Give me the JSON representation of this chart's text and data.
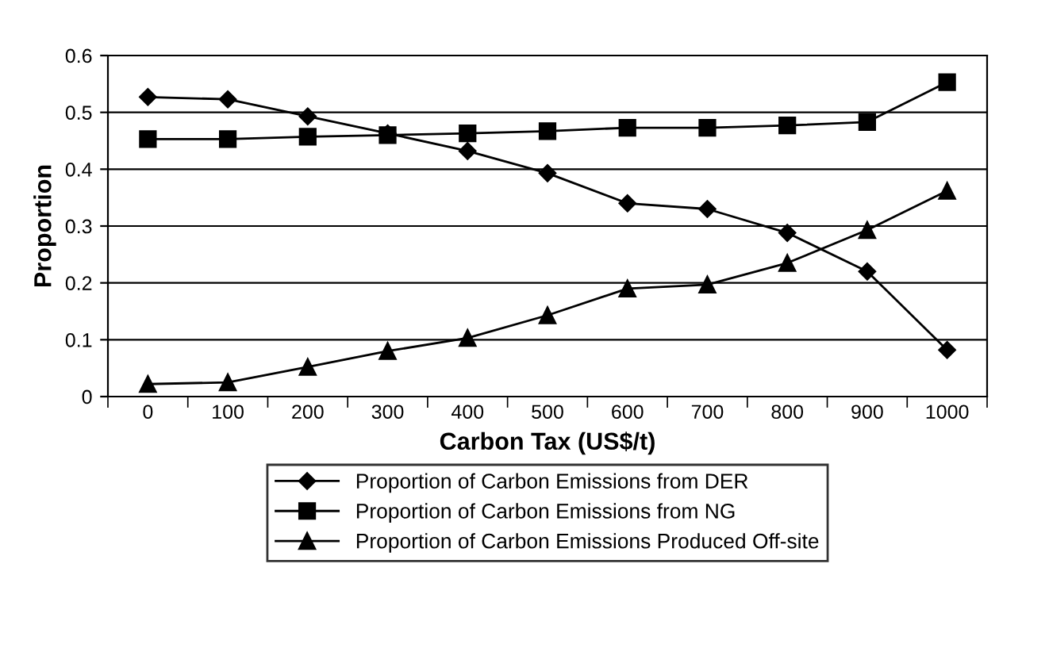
{
  "chart_data": {
    "type": "line",
    "xlabel": "Carbon Tax (US$/t)",
    "ylabel": "Proportion",
    "categories": [
      "0",
      "100",
      "200",
      "300",
      "400",
      "500",
      "600",
      "700",
      "800",
      "900",
      "1000"
    ],
    "ylim": [
      0,
      0.6
    ],
    "yticks": [
      0,
      0.1,
      0.2,
      0.3,
      0.4,
      0.5,
      0.6
    ],
    "grid": "y",
    "legend": "bottom",
    "series": [
      {
        "name": "Proportion of Carbon Emissions from DER",
        "color": "#000000",
        "marker": "diamond",
        "values": [
          0.527,
          0.523,
          0.493,
          0.463,
          0.432,
          0.393,
          0.34,
          0.33,
          0.288,
          0.22,
          0.082
        ]
      },
      {
        "name": "Proportion of Carbon Emissions from NG",
        "color": "#000000",
        "marker": "square",
        "values": [
          0.453,
          0.453,
          0.457,
          0.46,
          0.463,
          0.467,
          0.473,
          0.473,
          0.477,
          0.483,
          0.553
        ]
      },
      {
        "name": "Proportion of Carbon Emissions Produced Off-site",
        "color": "#000000",
        "marker": "triangle",
        "values": [
          0.022,
          0.025,
          0.052,
          0.08,
          0.103,
          0.143,
          0.19,
          0.197,
          0.235,
          0.293,
          0.362
        ]
      }
    ]
  }
}
